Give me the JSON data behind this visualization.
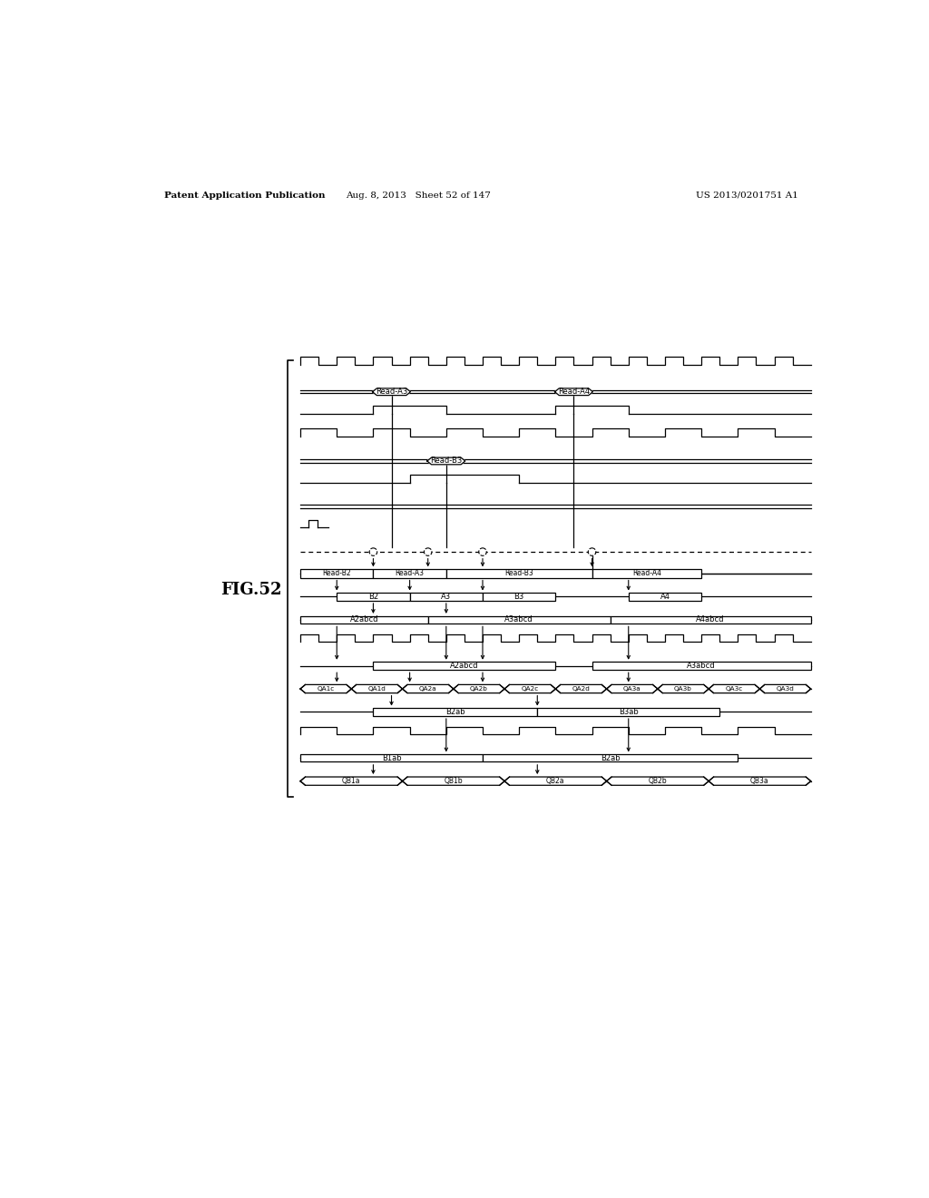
{
  "title_left": "Patent Application Publication",
  "title_center": "Aug. 8, 2013   Sheet 52 of 147",
  "title_right": "US 2013/0201751 A1",
  "fig_label": "FIG.52",
  "bg_color": "#ffffff"
}
